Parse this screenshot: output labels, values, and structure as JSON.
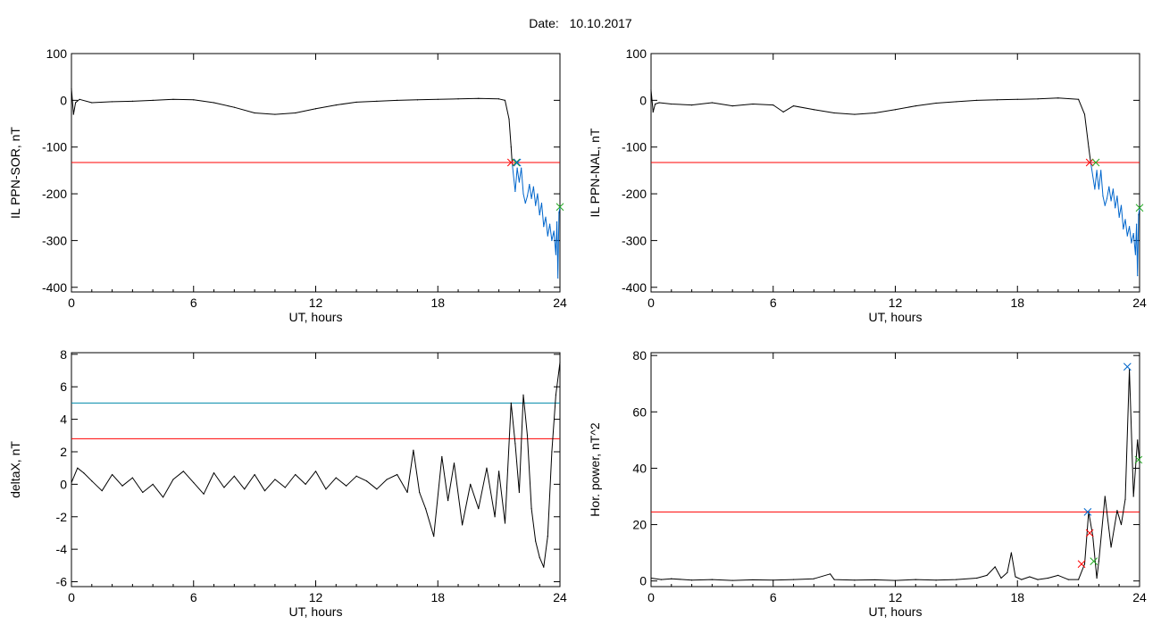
{
  "figure": {
    "date_label": "Date:",
    "date_value": "10.10.2017"
  },
  "colors": {
    "black": "#000000",
    "red": "#ff0000",
    "blue": "#0066cc",
    "teal": "#0088aa",
    "green": "#22aa22"
  },
  "chart_data": [
    {
      "type": "line",
      "xlabel": "UT, hours",
      "ylabel": "IL PPN-SOR, nT",
      "xlim": [
        0,
        24
      ],
      "ylim": [
        -410,
        100
      ],
      "xticks": [
        0,
        6,
        12,
        18,
        24
      ],
      "yticks": [
        100,
        0,
        -100,
        -200,
        -300,
        -400
      ],
      "threshold": -133,
      "series": [
        {
          "color": "black",
          "x": [
            0,
            0.1,
            0.2,
            0.4,
            1,
            2,
            3,
            4,
            5,
            6,
            7,
            8,
            9,
            10,
            11,
            12,
            13,
            14,
            15,
            16,
            17,
            18,
            19,
            20,
            21,
            21.3,
            21.5,
            21.6,
            21.65
          ],
          "y": [
            25,
            -30,
            -5,
            2,
            -5,
            -3,
            -2,
            0,
            2,
            1,
            -5,
            -15,
            -27,
            -30,
            -27,
            -18,
            -10,
            -4,
            -2,
            0,
            1,
            2,
            3,
            4,
            3,
            0,
            -40,
            -100,
            -133
          ]
        },
        {
          "color": "blue",
          "x": [
            21.65,
            21.8,
            21.9,
            22.0,
            22.1,
            22.2,
            22.3,
            22.4,
            22.5,
            22.6,
            22.7,
            22.8,
            22.9,
            23.0,
            23.1,
            23.2,
            23.3,
            23.4,
            23.5,
            23.6,
            23.7,
            23.8,
            23.85,
            23.9,
            23.95,
            24.0
          ],
          "y": [
            -133,
            -195,
            -145,
            -175,
            -145,
            -200,
            -220,
            -205,
            -180,
            -210,
            -185,
            -225,
            -200,
            -245,
            -220,
            -270,
            -250,
            -290,
            -265,
            -300,
            -280,
            -330,
            -260,
            -380,
            -240,
            -230
          ]
        }
      ],
      "markers": [
        {
          "x": 21.6,
          "y": -133,
          "color": "red"
        },
        {
          "x": 21.85,
          "y": -133,
          "color": "green"
        },
        {
          "x": 21.9,
          "y": -133,
          "color": "blue"
        },
        {
          "x": 24.0,
          "y": -228,
          "color": "green"
        }
      ]
    },
    {
      "type": "line",
      "xlabel": "UT, hours",
      "ylabel": "IL PPN-NAL, nT",
      "xlim": [
        0,
        24
      ],
      "ylim": [
        -410,
        100
      ],
      "xticks": [
        0,
        6,
        12,
        18,
        24
      ],
      "yticks": [
        100,
        0,
        -100,
        -200,
        -300,
        -400
      ],
      "threshold": -133,
      "series": [
        {
          "color": "black",
          "x": [
            0,
            0.1,
            0.2,
            0.4,
            1,
            2,
            3,
            4,
            5,
            6,
            6.5,
            7,
            8,
            9,
            10,
            11,
            12,
            13,
            14,
            15,
            16,
            17,
            18,
            19,
            20,
            21,
            21.3,
            21.5,
            21.6
          ],
          "y": [
            22,
            -25,
            -8,
            -5,
            -8,
            -10,
            -5,
            -12,
            -8,
            -10,
            -25,
            -12,
            -20,
            -27,
            -30,
            -27,
            -20,
            -12,
            -6,
            -3,
            0,
            1,
            2,
            3,
            5,
            2,
            -30,
            -100,
            -133
          ]
        },
        {
          "color": "blue",
          "x": [
            21.6,
            21.8,
            21.9,
            22.0,
            22.1,
            22.2,
            22.3,
            22.4,
            22.5,
            22.6,
            22.7,
            22.8,
            22.9,
            23.0,
            23.1,
            23.2,
            23.3,
            23.4,
            23.5,
            23.6,
            23.7,
            23.8,
            23.85,
            23.9,
            23.95,
            24.0
          ],
          "y": [
            -133,
            -190,
            -150,
            -190,
            -150,
            -205,
            -225,
            -210,
            -185,
            -215,
            -190,
            -230,
            -205,
            -250,
            -225,
            -275,
            -255,
            -290,
            -270,
            -305,
            -285,
            -330,
            -265,
            -375,
            -245,
            -232
          ]
        }
      ],
      "markers": [
        {
          "x": 21.55,
          "y": -133,
          "color": "red"
        },
        {
          "x": 21.85,
          "y": -133,
          "color": "green"
        },
        {
          "x": 24.0,
          "y": -230,
          "color": "green"
        }
      ]
    },
    {
      "type": "line",
      "xlabel": "UT, hours",
      "ylabel": "deltaX, nT",
      "xlim": [
        0,
        24
      ],
      "ylim": [
        -6.3,
        8.1
      ],
      "xticks": [
        0,
        6,
        12,
        18,
        24
      ],
      "yticks": [
        8,
        6,
        4,
        2,
        0,
        -2,
        -4,
        -6
      ],
      "levels": [
        {
          "y": 5.0,
          "color": "teal"
        },
        {
          "y": 2.8,
          "color": "red"
        }
      ],
      "series": [
        {
          "color": "black",
          "x": [
            0,
            0.3,
            0.6,
            1,
            1.5,
            2,
            2.5,
            3,
            3.5,
            4,
            4.5,
            5,
            5.5,
            6,
            6.5,
            7,
            7.5,
            8,
            8.5,
            9,
            9.5,
            10,
            10.5,
            11,
            11.5,
            12,
            12.5,
            13,
            13.5,
            14,
            14.5,
            15,
            15.5,
            16,
            16.5,
            16.8,
            17.1,
            17.4,
            17.8,
            18.2,
            18.5,
            18.8,
            19.2,
            19.6,
            20,
            20.4,
            20.8,
            21.0,
            21.3,
            21.6,
            21.8,
            22.0,
            22.2,
            22.4,
            22.6,
            22.8,
            23.0,
            23.2,
            23.4,
            23.6,
            23.8,
            24.0
          ],
          "y": [
            0.1,
            1.0,
            0.7,
            0.2,
            -0.4,
            0.6,
            -0.1,
            0.4,
            -0.5,
            0.0,
            -0.8,
            0.3,
            0.8,
            0.1,
            -0.6,
            0.7,
            -0.2,
            0.5,
            -0.3,
            0.6,
            -0.4,
            0.3,
            -0.2,
            0.6,
            0.0,
            0.8,
            -0.3,
            0.4,
            -0.1,
            0.5,
            0.2,
            -0.3,
            0.3,
            0.6,
            -0.5,
            2.1,
            -0.5,
            -1.5,
            -3.2,
            1.7,
            -1.0,
            1.3,
            -2.5,
            0.0,
            -1.5,
            1.0,
            -2.0,
            0.8,
            -2.4,
            5.0,
            2.5,
            -0.5,
            5.5,
            3.0,
            -1.5,
            -3.5,
            -4.5,
            -5.1,
            -3.2,
            2.0,
            5.5,
            7.5
          ]
        }
      ]
    },
    {
      "type": "line",
      "xlabel": "UT, hours",
      "ylabel": "Hor. power, nT^2",
      "xlim": [
        0,
        24
      ],
      "ylim": [
        -2,
        81
      ],
      "xticks": [
        0,
        6,
        12,
        18,
        24
      ],
      "yticks": [
        80,
        60,
        40,
        20,
        0
      ],
      "threshold": 24.5,
      "series": [
        {
          "color": "black",
          "x": [
            0,
            0.5,
            1,
            2,
            3,
            4,
            5,
            6,
            7,
            8,
            8.8,
            9,
            10,
            11,
            12,
            13,
            14,
            15,
            16,
            16.5,
            16.9,
            17.2,
            17.5,
            17.7,
            17.9,
            18.2,
            18.6,
            19,
            19.5,
            20,
            20.5,
            21.0,
            21.3,
            21.5,
            21.7,
            21.9,
            22.0,
            22.3,
            22.6,
            22.9,
            23.1,
            23.3,
            23.5,
            23.7,
            23.9,
            24.0
          ],
          "y": [
            1,
            0.5,
            0.8,
            0.3,
            0.5,
            0.2,
            0.4,
            0.3,
            0.5,
            0.8,
            2.5,
            0.5,
            0.3,
            0.4,
            0.2,
            0.5,
            0.3,
            0.5,
            1.0,
            2.0,
            5.0,
            1.0,
            3.0,
            10.0,
            1.5,
            0.5,
            1.5,
            0.5,
            1.0,
            2.0,
            0.5,
            0.5,
            6.0,
            24.5,
            16.0,
            1.0,
            7.0,
            30.0,
            12.0,
            25.0,
            20.0,
            29.0,
            75.0,
            30.0,
            50.0,
            42.0
          ]
        }
      ],
      "markers": [
        {
          "x": 21.15,
          "y": 6.0,
          "color": "red"
        },
        {
          "x": 21.45,
          "y": 24.5,
          "color": "blue"
        },
        {
          "x": 21.55,
          "y": 17.0,
          "color": "red"
        },
        {
          "x": 21.75,
          "y": 7.0,
          "color": "green"
        },
        {
          "x": 23.4,
          "y": 76.0,
          "color": "blue"
        },
        {
          "x": 23.95,
          "y": 43.0,
          "color": "green"
        }
      ]
    }
  ]
}
